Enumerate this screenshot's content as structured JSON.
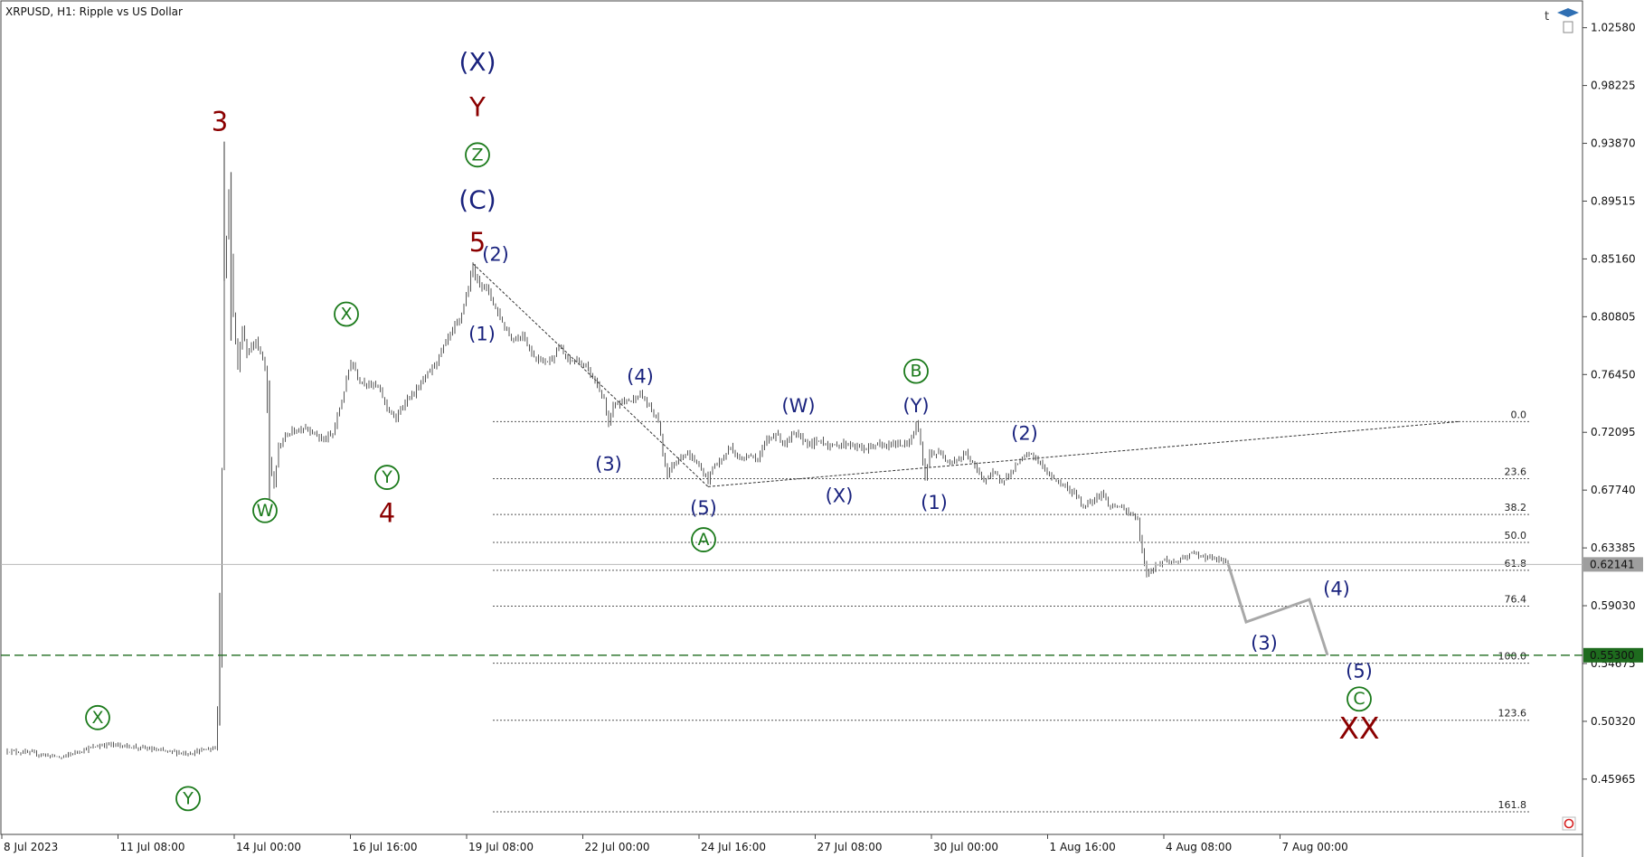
{
  "chart_data": {
    "type": "candlestick",
    "title": "XRPUSD, H1:  Ripple vs US Dollar",
    "time_labels": [
      "8 Jul 2023",
      "11 Jul 08:00",
      "14 Jul 00:00",
      "16 Jul 16:00",
      "19 Jul 08:00",
      "22 Jul 00:00",
      "24 Jul 16:00",
      "27 Jul 08:00",
      "30 Jul 00:00",
      "1 Aug 16:00",
      "4 Aug 08:00",
      "7 Aug 00:00"
    ],
    "price_labels": [
      "1.02580",
      "0.98225",
      "0.93870",
      "0.89515",
      "0.85160",
      "0.80805",
      "0.76450",
      "0.72095",
      "0.67740",
      "0.63385",
      "0.59030",
      "0.54675",
      "0.50320",
      "0.45965"
    ],
    "ylim": [
      0.418,
      1.046
    ],
    "current_price": "0.62141",
    "target_price": "0.55300",
    "colors": {
      "bars": "#555555",
      "wave_blue": "#1a237e",
      "wave_green": "#1b7a1b",
      "wave_red": "#8b0000",
      "target_line": "#1e6b1e",
      "projection": "#a8a8a8",
      "current_line": "#b8b8b8",
      "current_tag": "#9e9e9e"
    },
    "price_path": [
      {
        "t": 0,
        "p": 0.481
      },
      {
        "t": 6,
        "p": 0.479
      },
      {
        "t": 12,
        "p": 0.476
      },
      {
        "t": 16,
        "p": 0.481
      },
      {
        "t": 22,
        "p": 0.486
      },
      {
        "t": 28,
        "p": 0.484
      },
      {
        "t": 34,
        "p": 0.481
      },
      {
        "t": 40,
        "p": 0.479
      },
      {
        "t": 44,
        "p": 0.482
      },
      {
        "t": 46,
        "p": 0.483
      },
      {
        "t": 47,
        "p": 0.545
      },
      {
        "t": 48,
        "p": 0.84
      },
      {
        "t": 49,
        "p": 0.9
      },
      {
        "t": 50,
        "p": 0.81
      },
      {
        "t": 51,
        "p": 0.77
      },
      {
        "t": 52,
        "p": 0.8
      },
      {
        "t": 53,
        "p": 0.78
      },
      {
        "t": 55,
        "p": 0.79
      },
      {
        "t": 57,
        "p": 0.77
      },
      {
        "t": 58,
        "p": 0.7
      },
      {
        "t": 59,
        "p": 0.68
      },
      {
        "t": 60,
        "p": 0.71
      },
      {
        "t": 62,
        "p": 0.72
      },
      {
        "t": 66,
        "p": 0.725
      },
      {
        "t": 70,
        "p": 0.715
      },
      {
        "t": 72,
        "p": 0.72
      },
      {
        "t": 74,
        "p": 0.745
      },
      {
        "t": 76,
        "p": 0.775
      },
      {
        "t": 78,
        "p": 0.76
      },
      {
        "t": 82,
        "p": 0.755
      },
      {
        "t": 84,
        "p": 0.74
      },
      {
        "t": 86,
        "p": 0.73
      },
      {
        "t": 88,
        "p": 0.745
      },
      {
        "t": 90,
        "p": 0.75
      },
      {
        "t": 92,
        "p": 0.76
      },
      {
        "t": 95,
        "p": 0.775
      },
      {
        "t": 98,
        "p": 0.795
      },
      {
        "t": 100,
        "p": 0.805
      },
      {
        "t": 102,
        "p": 0.83
      },
      {
        "t": 103,
        "p": 0.845
      },
      {
        "t": 104,
        "p": 0.835
      },
      {
        "t": 106,
        "p": 0.83
      },
      {
        "t": 108,
        "p": 0.815
      },
      {
        "t": 110,
        "p": 0.8
      },
      {
        "t": 112,
        "p": 0.79
      },
      {
        "t": 114,
        "p": 0.795
      },
      {
        "t": 116,
        "p": 0.78
      },
      {
        "t": 118,
        "p": 0.775
      },
      {
        "t": 120,
        "p": 0.775
      },
      {
        "t": 122,
        "p": 0.785
      },
      {
        "t": 124,
        "p": 0.775
      },
      {
        "t": 126,
        "p": 0.775
      },
      {
        "t": 128,
        "p": 0.77
      },
      {
        "t": 130,
        "p": 0.76
      },
      {
        "t": 132,
        "p": 0.745
      },
      {
        "t": 133,
        "p": 0.725
      },
      {
        "t": 134,
        "p": 0.74
      },
      {
        "t": 136,
        "p": 0.745
      },
      {
        "t": 138,
        "p": 0.745
      },
      {
        "t": 140,
        "p": 0.75
      },
      {
        "t": 142,
        "p": 0.74
      },
      {
        "t": 144,
        "p": 0.73
      },
      {
        "t": 145,
        "p": 0.705
      },
      {
        "t": 146,
        "p": 0.69
      },
      {
        "t": 148,
        "p": 0.7
      },
      {
        "t": 150,
        "p": 0.705
      },
      {
        "t": 152,
        "p": 0.7
      },
      {
        "t": 154,
        "p": 0.69
      },
      {
        "t": 155,
        "p": 0.685
      },
      {
        "t": 156,
        "p": 0.695
      },
      {
        "t": 158,
        "p": 0.7
      },
      {
        "t": 160,
        "p": 0.71
      },
      {
        "t": 162,
        "p": 0.7
      },
      {
        "t": 164,
        "p": 0.705
      },
      {
        "t": 166,
        "p": 0.7
      },
      {
        "t": 168,
        "p": 0.715
      },
      {
        "t": 170,
        "p": 0.72
      },
      {
        "t": 172,
        "p": 0.712
      },
      {
        "t": 174,
        "p": 0.72
      },
      {
        "t": 176,
        "p": 0.715
      },
      {
        "t": 178,
        "p": 0.712
      },
      {
        "t": 180,
        "p": 0.715
      },
      {
        "t": 182,
        "p": 0.71
      },
      {
        "t": 184,
        "p": 0.712
      },
      {
        "t": 186,
        "p": 0.712
      },
      {
        "t": 188,
        "p": 0.71
      },
      {
        "t": 190,
        "p": 0.708
      },
      {
        "t": 192,
        "p": 0.712
      },
      {
        "t": 194,
        "p": 0.71
      },
      {
        "t": 196,
        "p": 0.712
      },
      {
        "t": 198,
        "p": 0.712
      },
      {
        "t": 200,
        "p": 0.715
      },
      {
        "t": 201,
        "p": 0.728
      },
      {
        "t": 202,
        "p": 0.712
      },
      {
        "t": 203,
        "p": 0.685
      },
      {
        "t": 204,
        "p": 0.705
      },
      {
        "t": 206,
        "p": 0.705
      },
      {
        "t": 208,
        "p": 0.7
      },
      {
        "t": 210,
        "p": 0.7
      },
      {
        "t": 212,
        "p": 0.705
      },
      {
        "t": 214,
        "p": 0.695
      },
      {
        "t": 216,
        "p": 0.685
      },
      {
        "t": 218,
        "p": 0.69
      },
      {
        "t": 220,
        "p": 0.685
      },
      {
        "t": 222,
        "p": 0.69
      },
      {
        "t": 224,
        "p": 0.7
      },
      {
        "t": 226,
        "p": 0.705
      },
      {
        "t": 228,
        "p": 0.7
      },
      {
        "t": 230,
        "p": 0.69
      },
      {
        "t": 232,
        "p": 0.685
      },
      {
        "t": 234,
        "p": 0.68
      },
      {
        "t": 236,
        "p": 0.675
      },
      {
        "t": 238,
        "p": 0.665
      },
      {
        "t": 240,
        "p": 0.67
      },
      {
        "t": 242,
        "p": 0.675
      },
      {
        "t": 244,
        "p": 0.665
      },
      {
        "t": 246,
        "p": 0.665
      },
      {
        "t": 248,
        "p": 0.66
      },
      {
        "t": 250,
        "p": 0.655
      },
      {
        "t": 251,
        "p": 0.63
      },
      {
        "t": 252,
        "p": 0.615
      },
      {
        "t": 254,
        "p": 0.62
      },
      {
        "t": 256,
        "p": 0.625
      },
      {
        "t": 258,
        "p": 0.623
      },
      {
        "t": 260,
        "p": 0.625
      },
      {
        "t": 262,
        "p": 0.63
      },
      {
        "t": 264,
        "p": 0.628
      },
      {
        "t": 266,
        "p": 0.626
      },
      {
        "t": 268,
        "p": 0.625
      },
      {
        "t": 270,
        "p": 0.622
      }
    ],
    "projection": [
      {
        "t": 270,
        "p": 0.622
      },
      {
        "t": 274,
        "p": 0.578
      },
      {
        "t": 288,
        "p": 0.595
      },
      {
        "t": 292,
        "p": 0.553
      }
    ],
    "trendlines": [
      {
        "from": {
          "t": 103,
          "p": 0.848
        },
        "to": {
          "t": 155,
          "p": 0.68
        }
      },
      {
        "from": {
          "t": 155,
          "p": 0.68
        },
        "to": {
          "t": 321,
          "p": 0.729
        }
      }
    ],
    "fib_levels": [
      {
        "label": "0.0",
        "price": 0.729
      },
      {
        "label": "23.6",
        "price": 0.686
      },
      {
        "label": "38.2",
        "price": 0.659
      },
      {
        "label": "50.0",
        "price": 0.638
      },
      {
        "label": "61.8",
        "price": 0.617
      },
      {
        "label": "76.4",
        "price": 0.59
      },
      {
        "label": "100.0",
        "price": 0.547
      },
      {
        "label": "123.6",
        "price": 0.504
      },
      {
        "label": "161.8",
        "price": 0.435
      }
    ],
    "wave_labels": [
      {
        "text": "3",
        "t": 47,
        "p": 0.955,
        "style": "red"
      },
      {
        "text": "(X)",
        "t": 104,
        "p": 1.0,
        "style": "blue-lg"
      },
      {
        "text": "Y",
        "t": 104,
        "p": 0.966,
        "style": "red"
      },
      {
        "text": "Z",
        "t": 104,
        "p": 0.93,
        "style": "green-circle"
      },
      {
        "text": "(C)",
        "t": 104,
        "p": 0.896,
        "style": "blue-lg"
      },
      {
        "text": "5",
        "t": 104,
        "p": 0.864,
        "style": "red"
      },
      {
        "text": "(2)",
        "t": 108,
        "p": 0.855,
        "style": "blue"
      },
      {
        "text": "(1)",
        "t": 105,
        "p": 0.795,
        "style": "blue"
      },
      {
        "text": "X",
        "t": 75,
        "p": 0.81,
        "style": "green-circle"
      },
      {
        "text": "Y",
        "t": 84,
        "p": 0.687,
        "style": "green-circle"
      },
      {
        "text": "4",
        "t": 84,
        "p": 0.66,
        "style": "red"
      },
      {
        "text": "W",
        "t": 57,
        "p": 0.662,
        "style": "green-circle"
      },
      {
        "text": "X",
        "t": 20,
        "p": 0.506,
        "style": "green-circle"
      },
      {
        "text": "Y",
        "t": 40,
        "p": 0.445,
        "style": "green-circle"
      },
      {
        "text": "(4)",
        "t": 140,
        "p": 0.763,
        "style": "blue"
      },
      {
        "text": "(3)",
        "t": 133,
        "p": 0.697,
        "style": "blue"
      },
      {
        "text": "(5)",
        "t": 154,
        "p": 0.664,
        "style": "blue"
      },
      {
        "text": "A",
        "t": 154,
        "p": 0.64,
        "style": "green-circle"
      },
      {
        "text": "(W)",
        "t": 175,
        "p": 0.741,
        "style": "blue"
      },
      {
        "text": "(X)",
        "t": 184,
        "p": 0.673,
        "style": "blue"
      },
      {
        "text": "B",
        "t": 201,
        "p": 0.767,
        "style": "green-circle"
      },
      {
        "text": "(Y)",
        "t": 201,
        "p": 0.741,
        "style": "blue"
      },
      {
        "text": "(1)",
        "t": 205,
        "p": 0.668,
        "style": "blue"
      },
      {
        "text": "(2)",
        "t": 225,
        "p": 0.72,
        "style": "blue"
      },
      {
        "text": "(3)",
        "t": 278,
        "p": 0.562,
        "style": "blue"
      },
      {
        "text": "(4)",
        "t": 294,
        "p": 0.603,
        "style": "blue"
      },
      {
        "text": "(5)",
        "t": 299,
        "p": 0.541,
        "style": "blue"
      },
      {
        "text": "C",
        "t": 299,
        "p": 0.52,
        "style": "green-circle"
      },
      {
        "text": "XX",
        "t": 299,
        "p": 0.498,
        "style": "red-lg"
      }
    ],
    "grid": false
  }
}
